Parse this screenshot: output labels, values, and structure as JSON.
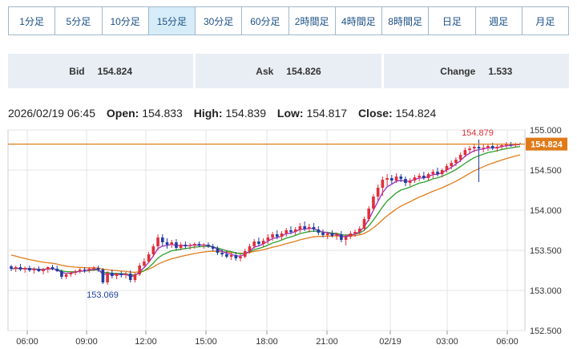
{
  "tabs": [
    {
      "label": "1分足"
    },
    {
      "label": "5分足"
    },
    {
      "label": "10分足"
    },
    {
      "label": "15分足",
      "active": true
    },
    {
      "label": "30分足"
    },
    {
      "label": "60分足"
    },
    {
      "label": "2時間足"
    },
    {
      "label": "4時間足"
    },
    {
      "label": "8時間足"
    },
    {
      "label": "日足"
    },
    {
      "label": "週足"
    },
    {
      "label": "月足"
    }
  ],
  "quotes": {
    "bid_label": "Bid",
    "bid_value": "154.824",
    "ask_label": "Ask",
    "ask_value": "154.826",
    "change_label": "Change",
    "change_value": "1.533"
  },
  "ohlc": {
    "datetime": "2026/02/19 06:45",
    "open_label": "Open:",
    "open": "154.833",
    "high_label": "High:",
    "high": "154.839",
    "low_label": "Low:",
    "low": "154.817",
    "close_label": "Close:",
    "close": "154.824"
  },
  "colors": {
    "up": "#e0303a",
    "down": "#1f3fa0",
    "ma_short": "#9b2fc4",
    "ma_mid": "#2aa02a",
    "ma_long": "#e07b1a",
    "price_line": "#e07b1a",
    "grid": "#e3e3e3"
  },
  "chart_data": {
    "type": "candlestick",
    "y_range": [
      152.5,
      155.0
    ],
    "y_ticks": [
      "155.000",
      "154.500",
      "154.000",
      "153.500",
      "153.000",
      "152.500"
    ],
    "x_ticks": [
      "06:00",
      "09:00",
      "12:00",
      "15:00",
      "18:00",
      "21:00",
      "02/19",
      "03:00",
      "06:00"
    ],
    "current_price": 154.824,
    "current_price_label": "154.824",
    "annotations": {
      "high": "154.879",
      "low": "153.069"
    },
    "candles": [
      [
        153.3,
        153.32,
        153.24,
        153.27
      ],
      [
        153.27,
        153.31,
        153.23,
        153.29
      ],
      [
        153.29,
        153.33,
        153.24,
        153.26
      ],
      [
        153.26,
        153.3,
        153.22,
        153.28
      ],
      [
        153.28,
        153.31,
        153.23,
        153.25
      ],
      [
        153.25,
        153.29,
        153.21,
        153.27
      ],
      [
        153.27,
        153.3,
        153.23,
        153.24
      ],
      [
        153.24,
        153.28,
        153.2,
        153.26
      ],
      [
        153.26,
        153.3,
        153.22,
        153.29
      ],
      [
        153.29,
        153.32,
        153.25,
        153.27
      ],
      [
        153.27,
        153.31,
        153.23,
        153.24
      ],
      [
        153.24,
        153.26,
        153.14,
        153.17
      ],
      [
        153.17,
        153.22,
        153.14,
        153.2
      ],
      [
        153.2,
        153.24,
        153.17,
        153.22
      ],
      [
        153.22,
        153.26,
        153.19,
        153.24
      ],
      [
        153.24,
        153.28,
        153.21,
        153.26
      ],
      [
        153.26,
        153.29,
        153.22,
        153.25
      ],
      [
        153.25,
        153.29,
        153.22,
        153.27
      ],
      [
        153.27,
        153.3,
        153.24,
        153.28
      ],
      [
        153.28,
        153.31,
        153.23,
        153.26
      ],
      [
        153.26,
        153.28,
        153.08,
        153.1
      ],
      [
        153.1,
        153.24,
        153.07,
        153.22
      ],
      [
        153.22,
        153.26,
        153.15,
        153.18
      ],
      [
        153.18,
        153.22,
        153.14,
        153.21
      ],
      [
        153.21,
        153.24,
        153.16,
        153.19
      ],
      [
        153.19,
        153.23,
        153.15,
        153.21
      ],
      [
        153.21,
        153.25,
        153.1,
        153.13
      ],
      [
        153.13,
        153.22,
        153.1,
        153.2
      ],
      [
        153.2,
        153.34,
        153.18,
        153.31
      ],
      [
        153.31,
        153.4,
        153.28,
        153.36
      ],
      [
        153.36,
        153.48,
        153.34,
        153.45
      ],
      [
        153.45,
        153.58,
        153.42,
        153.55
      ],
      [
        153.55,
        153.7,
        153.5,
        153.66
      ],
      [
        153.66,
        153.7,
        153.55,
        153.6
      ],
      [
        153.6,
        153.65,
        153.52,
        153.57
      ],
      [
        153.57,
        153.63,
        153.53,
        153.6
      ],
      [
        153.6,
        153.64,
        153.5,
        153.53
      ],
      [
        153.53,
        153.6,
        153.5,
        153.57
      ],
      [
        153.57,
        153.61,
        153.52,
        153.55
      ],
      [
        153.55,
        153.59,
        153.51,
        153.56
      ],
      [
        153.56,
        153.6,
        153.52,
        153.58
      ],
      [
        153.58,
        153.61,
        153.54,
        153.56
      ],
      [
        153.56,
        153.59,
        153.52,
        153.57
      ],
      [
        153.57,
        153.6,
        153.53,
        153.55
      ],
      [
        153.55,
        153.58,
        153.49,
        153.52
      ],
      [
        153.52,
        153.55,
        153.44,
        153.47
      ],
      [
        153.47,
        153.51,
        153.42,
        153.45
      ],
      [
        153.45,
        153.5,
        153.4,
        153.42
      ],
      [
        153.42,
        153.47,
        153.38,
        153.44
      ],
      [
        153.44,
        153.48,
        153.37,
        153.4
      ],
      [
        153.4,
        153.45,
        153.36,
        153.42
      ],
      [
        153.42,
        153.52,
        153.4,
        153.49
      ],
      [
        153.49,
        153.58,
        153.46,
        153.55
      ],
      [
        153.55,
        153.64,
        153.52,
        153.61
      ],
      [
        153.61,
        153.66,
        153.55,
        153.58
      ],
      [
        153.58,
        153.65,
        153.54,
        153.62
      ],
      [
        153.62,
        153.7,
        153.58,
        153.66
      ],
      [
        153.66,
        153.73,
        153.62,
        153.7
      ],
      [
        153.7,
        153.75,
        153.64,
        153.67
      ],
      [
        153.67,
        153.74,
        153.63,
        153.71
      ],
      [
        153.71,
        153.78,
        153.67,
        153.75
      ],
      [
        153.75,
        153.8,
        153.7,
        153.73
      ],
      [
        153.73,
        153.79,
        153.69,
        153.76
      ],
      [
        153.76,
        153.84,
        153.72,
        153.8
      ],
      [
        153.8,
        153.86,
        153.74,
        153.77
      ],
      [
        153.77,
        153.83,
        153.72,
        153.79
      ],
      [
        153.79,
        153.84,
        153.73,
        153.76
      ],
      [
        153.76,
        153.8,
        153.69,
        153.72
      ],
      [
        153.72,
        153.76,
        153.66,
        153.69
      ],
      [
        153.69,
        153.73,
        153.64,
        153.71
      ],
      [
        153.71,
        153.75,
        153.66,
        153.68
      ],
      [
        153.68,
        153.72,
        153.63,
        153.7
      ],
      [
        153.7,
        153.74,
        153.6,
        153.63
      ],
      [
        153.63,
        153.7,
        153.56,
        153.67
      ],
      [
        153.67,
        153.74,
        153.64,
        153.71
      ],
      [
        153.71,
        153.76,
        153.67,
        153.73
      ],
      [
        153.73,
        153.8,
        153.7,
        153.77
      ],
      [
        153.77,
        153.92,
        153.74,
        153.89
      ],
      [
        153.89,
        154.05,
        153.86,
        154.02
      ],
      [
        154.02,
        154.2,
        153.99,
        154.17
      ],
      [
        154.17,
        154.32,
        154.12,
        154.28
      ],
      [
        154.28,
        154.42,
        154.18,
        154.38
      ],
      [
        154.38,
        154.45,
        154.3,
        154.4
      ],
      [
        154.4,
        154.44,
        154.33,
        154.37
      ],
      [
        154.37,
        154.46,
        154.34,
        154.42
      ],
      [
        154.42,
        154.45,
        154.35,
        154.39
      ],
      [
        154.39,
        154.42,
        154.3,
        154.34
      ],
      [
        154.34,
        154.4,
        154.3,
        154.37
      ],
      [
        154.37,
        154.44,
        154.34,
        154.41
      ],
      [
        154.41,
        154.46,
        154.36,
        154.43
      ],
      [
        154.43,
        154.48,
        154.38,
        154.4
      ],
      [
        154.4,
        154.47,
        154.37,
        154.45
      ],
      [
        154.45,
        154.51,
        154.4,
        154.48
      ],
      [
        154.48,
        154.53,
        154.42,
        154.45
      ],
      [
        154.45,
        154.52,
        154.41,
        154.5
      ],
      [
        154.5,
        154.58,
        154.47,
        154.55
      ],
      [
        154.55,
        154.62,
        154.51,
        154.59
      ],
      [
        154.59,
        154.66,
        154.55,
        154.63
      ],
      [
        154.63,
        154.72,
        154.6,
        154.69
      ],
      [
        154.69,
        154.78,
        154.66,
        154.75
      ],
      [
        154.75,
        154.8,
        154.7,
        154.77
      ],
      [
        154.77,
        154.82,
        154.72,
        154.79
      ],
      [
        154.79,
        154.88,
        154.35,
        154.77
      ],
      [
        154.77,
        154.82,
        154.72,
        154.78
      ],
      [
        154.78,
        154.83,
        154.74,
        154.8
      ],
      [
        154.8,
        154.84,
        154.75,
        154.77
      ],
      [
        154.77,
        154.82,
        154.73,
        154.79
      ],
      [
        154.79,
        154.83,
        154.76,
        154.81
      ],
      [
        154.81,
        154.85,
        154.78,
        154.82
      ],
      [
        154.82,
        154.85,
        154.79,
        154.81
      ],
      [
        154.81,
        154.84,
        154.78,
        154.83
      ],
      [
        154.83,
        154.84,
        154.82,
        154.82
      ]
    ]
  }
}
